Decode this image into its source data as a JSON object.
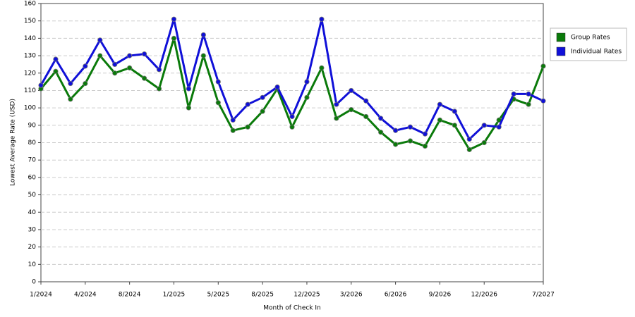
{
  "chart_data": {
    "type": "line",
    "x_label": "Month of Check In",
    "y_label": "Lowest Average Rate (USD)",
    "categories": [
      "1/2024",
      null,
      null,
      "4/2024",
      null,
      null,
      "8/2024",
      null,
      null,
      "1/2025",
      null,
      null,
      "5/2025",
      null,
      null,
      "8/2025",
      null,
      null,
      "12/2025",
      null,
      null,
      "3/2026",
      null,
      null,
      "6/2026",
      null,
      null,
      "9/2026",
      null,
      null,
      "12/2026",
      null,
      null,
      null,
      "7/2027"
    ],
    "series": [
      {
        "name": "Group Rates",
        "color": "#0a7a0a",
        "values": [
          111,
          121,
          105,
          114,
          130,
          120,
          123,
          117,
          111,
          140,
          100,
          130,
          103,
          87,
          89,
          98,
          111,
          89,
          106,
          123,
          94,
          99,
          95,
          86,
          79,
          81,
          78,
          93,
          90,
          76,
          80,
          93,
          105,
          102,
          124
        ]
      },
      {
        "name": "Individual Rates",
        "color": "#1010d8",
        "values": [
          113,
          128,
          114,
          124,
          139,
          125,
          130,
          131,
          122,
          151,
          111,
          142,
          115,
          93,
          102,
          106,
          112,
          95,
          115,
          151,
          102,
          110,
          104,
          94,
          87,
          89,
          85,
          102,
          98,
          82,
          90,
          89,
          108,
          108,
          104
        ]
      }
    ],
    "ylim": [
      0,
      160
    ],
    "yticks": [
      0,
      10,
      20,
      30,
      40,
      50,
      60,
      70,
      80,
      90,
      100,
      110,
      120,
      130,
      140,
      150,
      160
    ],
    "grid": true,
    "legend": "right"
  }
}
